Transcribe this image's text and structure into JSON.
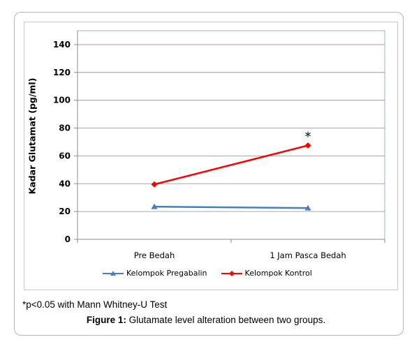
{
  "chart_data": {
    "type": "line",
    "categories": [
      "Pre Bedah",
      "1 Jam Pasca Bedah"
    ],
    "ylabel": "Kadar Glutamat (pg/ml)",
    "ylim": [
      0,
      150
    ],
    "yticks": [
      0,
      20,
      40,
      60,
      80,
      100,
      120,
      140
    ],
    "grid": true,
    "legend_position": "bottom",
    "series": [
      {
        "name": "Kelompok Pregabalin",
        "values": [
          23.5,
          22.5
        ],
        "color": "#4a7ebb",
        "marker": "triangle"
      },
      {
        "name": "Kelompok Kontrol",
        "values": [
          39.5,
          67.5
        ],
        "color": "#ff0000",
        "marker": "diamond"
      }
    ],
    "annotations": [
      {
        "text": "*",
        "category": "1 Jam Pasca Bedah",
        "y": 75
      }
    ]
  },
  "footnote": "*p<0.05 with Mann Whitney-U Test",
  "caption": {
    "label": "Figure 1:",
    "text": " Glutamate level alteration between two groups."
  }
}
